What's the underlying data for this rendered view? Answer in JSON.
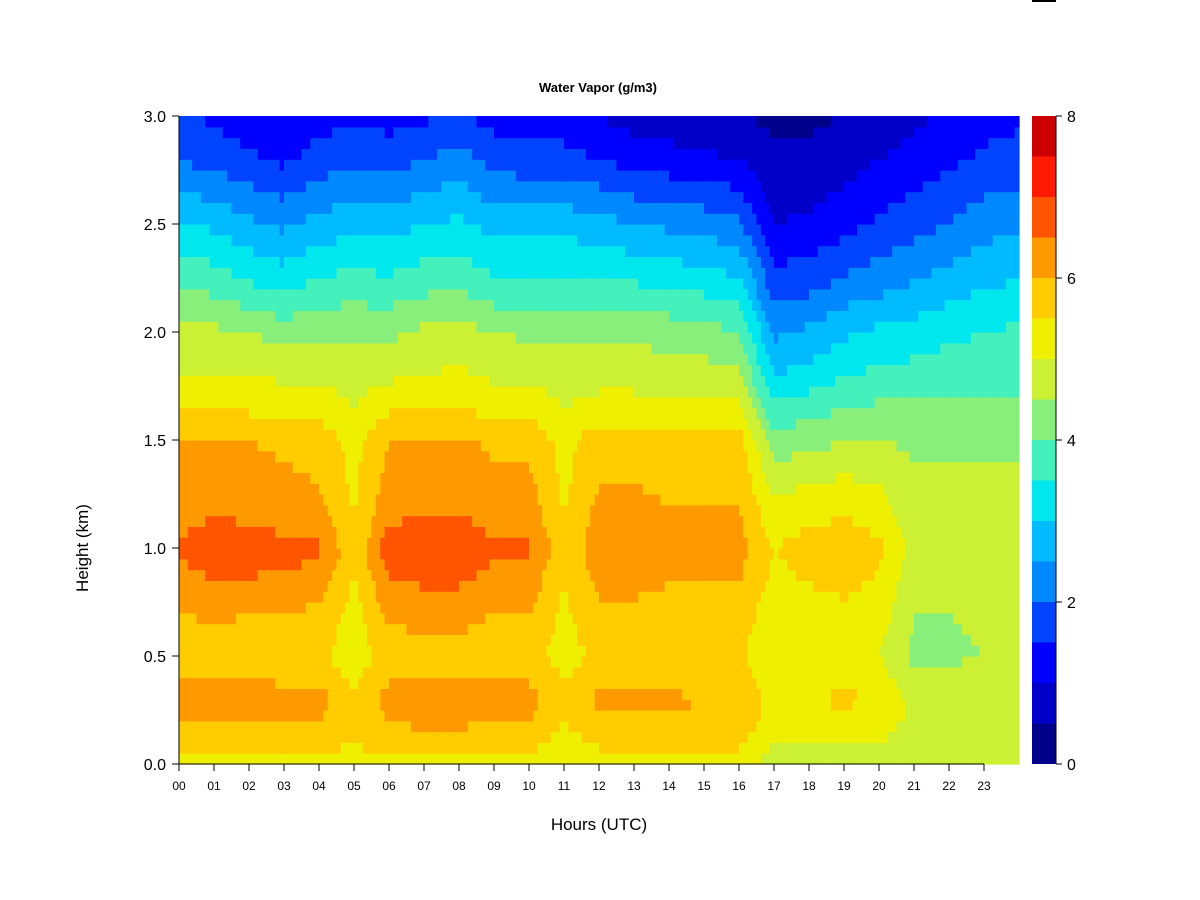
{
  "chart_data": {
    "type": "heatmap",
    "title": "Water Vapor (g/m3)",
    "xlabel": "Hours (UTC)",
    "ylabel": "Height (km)",
    "x_ticks": [
      "00",
      "01",
      "02",
      "03",
      "04",
      "05",
      "06",
      "07",
      "08",
      "09",
      "10",
      "11",
      "12",
      "13",
      "14",
      "15",
      "16",
      "17",
      "18",
      "19",
      "20",
      "21",
      "22",
      "23"
    ],
    "xlim": [
      0,
      24
    ],
    "y_ticks": [
      "0.0",
      "0.5",
      "1.0",
      "1.5",
      "2.0",
      "2.5",
      "3.0"
    ],
    "ylim": [
      0,
      3.0
    ],
    "colorbar": {
      "ticks": [
        "0",
        "2",
        "4",
        "6",
        "8"
      ],
      "range": [
        0,
        8
      ],
      "step": 0.5,
      "colors": [
        "#00008b",
        "#0000c8",
        "#0000ff",
        "#0044ff",
        "#0088ff",
        "#00bbff",
        "#00e8ee",
        "#44f0bb",
        "#88f07a",
        "#ccf033",
        "#eef000",
        "#ffcc00",
        "#ff9900",
        "#ff5500",
        "#ff1a00",
        "#cc0000"
      ]
    },
    "height_levels_km": [
      0.0,
      0.1,
      0.2,
      0.3,
      0.5,
      0.7,
      0.9,
      1.0,
      1.1,
      1.3,
      1.5,
      1.65,
      1.8,
      2.0,
      2.2,
      2.5,
      2.8,
      3.0
    ],
    "profiles": [
      {
        "hour": 0,
        "values": [
          5.2,
          5.6,
          6.0,
          6.3,
          5.6,
          6.0,
          6.4,
          6.6,
          6.4,
          6.1,
          6.0,
          5.4,
          5.0,
          4.6,
          4.0,
          3.0,
          2.0,
          1.6
        ]
      },
      {
        "hour": 1,
        "values": [
          5.2,
          5.6,
          6.1,
          6.4,
          5.7,
          6.1,
          6.6,
          6.8,
          6.6,
          6.2,
          6.0,
          5.5,
          5.0,
          4.6,
          3.9,
          2.9,
          1.8,
          1.4
        ]
      },
      {
        "hour": 2,
        "values": [
          5.3,
          5.7,
          6.0,
          6.3,
          5.7,
          6.0,
          6.6,
          6.8,
          6.5,
          6.2,
          6.0,
          5.4,
          5.0,
          4.5,
          3.6,
          2.6,
          1.6,
          1.2
        ]
      },
      {
        "hour": 3,
        "values": [
          5.3,
          5.7,
          6.0,
          6.2,
          5.6,
          6.0,
          6.5,
          6.7,
          6.4,
          6.1,
          5.9,
          5.4,
          4.9,
          4.3,
          3.4,
          2.4,
          1.4,
          1.2
        ]
      },
      {
        "hour": 4,
        "values": [
          5.3,
          5.7,
          6.0,
          6.2,
          5.6,
          5.9,
          6.4,
          6.6,
          6.3,
          6.0,
          5.8,
          5.3,
          4.9,
          4.4,
          3.7,
          2.7,
          1.7,
          1.3
        ]
      },
      {
        "hour": 5,
        "values": [
          5.2,
          5.5,
          5.6,
          5.6,
          5.2,
          5.3,
          5.5,
          5.6,
          5.5,
          5.4,
          5.3,
          5.0,
          4.8,
          4.4,
          3.8,
          2.8,
          1.9,
          1.4
        ]
      },
      {
        "hour": 6,
        "values": [
          5.3,
          5.8,
          6.0,
          6.2,
          5.7,
          6.1,
          6.6,
          6.8,
          6.5,
          6.2,
          6.0,
          5.4,
          4.9,
          4.4,
          3.7,
          2.8,
          1.8,
          1.3
        ]
      },
      {
        "hour": 7,
        "values": [
          5.3,
          5.8,
          6.1,
          6.3,
          5.8,
          6.2,
          6.7,
          6.9,
          6.6,
          6.3,
          6.1,
          5.5,
          5.0,
          4.6,
          3.9,
          3.0,
          2.0,
          1.4
        ]
      },
      {
        "hour": 8,
        "values": [
          5.3,
          5.8,
          6.1,
          6.3,
          5.8,
          6.2,
          6.7,
          6.9,
          6.6,
          6.3,
          6.1,
          5.5,
          5.1,
          4.7,
          4.0,
          3.1,
          2.2,
          1.6
        ]
      },
      {
        "hour": 9,
        "values": [
          5.3,
          5.7,
          6.0,
          6.2,
          5.7,
          6.0,
          6.4,
          6.6,
          6.4,
          6.1,
          5.9,
          5.3,
          4.9,
          4.5,
          3.7,
          2.8,
          1.8,
          1.3
        ]
      },
      {
        "hour": 10,
        "values": [
          5.3,
          5.7,
          6.0,
          6.2,
          5.7,
          6.0,
          6.4,
          6.6,
          6.4,
          6.1,
          5.9,
          5.3,
          4.9,
          4.4,
          3.7,
          2.8,
          1.7,
          1.2
        ]
      },
      {
        "hour": 11,
        "values": [
          5.1,
          5.3,
          5.5,
          5.6,
          5.3,
          5.4,
          5.5,
          5.6,
          5.5,
          5.4,
          5.3,
          5.0,
          4.8,
          4.4,
          3.7,
          2.8,
          1.7,
          1.2
        ]
      },
      {
        "hour": 12,
        "values": [
          5.2,
          5.6,
          5.9,
          6.1,
          5.6,
          5.9,
          6.2,
          6.3,
          6.2,
          6.0,
          5.8,
          5.2,
          4.8,
          4.4,
          3.7,
          2.7,
          1.5,
          1.0
        ]
      },
      {
        "hour": 13,
        "values": [
          5.2,
          5.6,
          5.9,
          6.1,
          5.6,
          5.9,
          6.2,
          6.3,
          6.2,
          6.0,
          5.8,
          5.2,
          4.8,
          4.4,
          3.6,
          2.5,
          1.3,
          0.8
        ]
      },
      {
        "hour": 14,
        "values": [
          5.2,
          5.6,
          5.9,
          6.1,
          5.6,
          5.8,
          6.1,
          6.3,
          6.1,
          5.9,
          5.7,
          5.1,
          4.7,
          4.3,
          3.5,
          2.4,
          1.2,
          0.7
        ]
      },
      {
        "hour": 15,
        "values": [
          5.2,
          5.6,
          5.9,
          6.0,
          5.6,
          5.8,
          6.1,
          6.2,
          6.1,
          5.9,
          5.7,
          5.1,
          4.7,
          4.2,
          3.4,
          2.3,
          1.1,
          0.6
        ]
      },
      {
        "hour": 16,
        "values": [
          5.2,
          5.6,
          5.9,
          6.0,
          5.6,
          5.8,
          6.1,
          6.2,
          6.1,
          5.9,
          5.7,
          5.1,
          4.6,
          4.0,
          3.2,
          2.1,
          1.0,
          0.5
        ]
      },
      {
        "hour": 17,
        "values": [
          4.8,
          5.0,
          5.2,
          5.3,
          5.0,
          5.2,
          5.4,
          5.5,
          5.3,
          4.8,
          4.2,
          3.6,
          3.0,
          2.4,
          1.8,
          1.0,
          0.6,
          0.4
        ]
      },
      {
        "hour": 18,
        "values": [
          4.6,
          4.9,
          5.3,
          5.5,
          5.1,
          5.3,
          5.6,
          5.7,
          5.5,
          5.0,
          4.3,
          3.8,
          3.2,
          2.6,
          1.9,
          1.1,
          0.6,
          0.4
        ]
      },
      {
        "hour": 19,
        "values": [
          4.6,
          4.9,
          5.3,
          5.6,
          5.1,
          5.4,
          5.7,
          5.8,
          5.6,
          5.1,
          4.5,
          4.0,
          3.5,
          2.9,
          2.2,
          1.3,
          0.8,
          0.5
        ]
      },
      {
        "hour": 20,
        "values": [
          4.7,
          5.0,
          5.2,
          5.5,
          5.0,
          5.3,
          5.5,
          5.6,
          5.4,
          5.0,
          4.5,
          4.1,
          3.6,
          3.1,
          2.4,
          1.6,
          1.0,
          0.7
        ]
      },
      {
        "hour": 21,
        "values": [
          4.6,
          4.8,
          4.9,
          4.8,
          4.4,
          4.5,
          4.7,
          4.8,
          4.7,
          4.6,
          4.4,
          4.1,
          3.7,
          3.2,
          2.6,
          1.8,
          1.2,
          0.9
        ]
      },
      {
        "hour": 22,
        "values": [
          4.6,
          4.8,
          4.9,
          4.9,
          4.4,
          4.5,
          4.7,
          4.8,
          4.7,
          4.6,
          4.4,
          4.1,
          3.8,
          3.4,
          2.8,
          2.0,
          1.4,
          1.1
        ]
      },
      {
        "hour": 23,
        "values": [
          4.7,
          4.9,
          5.0,
          4.9,
          4.5,
          4.6,
          4.8,
          4.9,
          4.8,
          4.6,
          4.4,
          4.1,
          3.8,
          3.5,
          3.0,
          2.3,
          1.6,
          1.3
        ]
      },
      {
        "hour": 24,
        "values": [
          4.7,
          4.9,
          5.0,
          4.9,
          4.5,
          4.6,
          4.8,
          4.9,
          4.8,
          4.6,
          4.4,
          4.1,
          3.9,
          3.6,
          3.1,
          2.4,
          1.7,
          1.4
        ]
      }
    ]
  }
}
